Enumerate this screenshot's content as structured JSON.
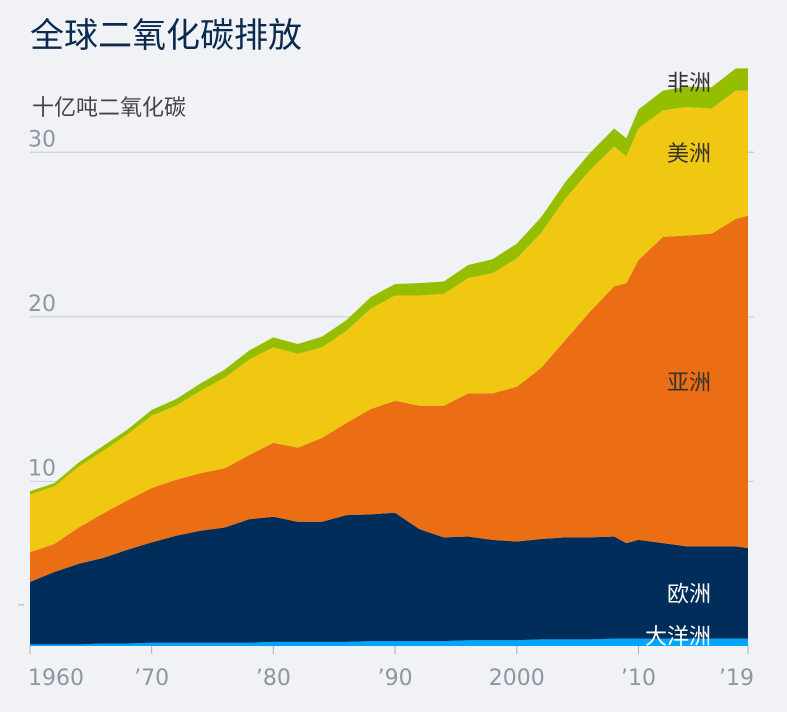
{
  "chart_data": {
    "type": "area",
    "stacked": true,
    "title": "全球二氧化碳排放",
    "ylabel": "十亿吨二氧化碳",
    "xlim": [
      1960,
      2019
    ],
    "ylim": [
      0,
      35
    ],
    "yticks": [
      10,
      20,
      30
    ],
    "xticks": [
      {
        "x": 1960,
        "label": "1960"
      },
      {
        "x": 1970,
        "label": "’70"
      },
      {
        "x": 1980,
        "label": "’80"
      },
      {
        "x": 1990,
        "label": "’90"
      },
      {
        "x": 2000,
        "label": "2000"
      },
      {
        "x": 2010,
        "label": "’10"
      },
      {
        "x": 2019,
        "label": "’19"
      }
    ],
    "x": [
      1960,
      1962,
      1964,
      1966,
      1968,
      1970,
      1972,
      1974,
      1976,
      1978,
      1980,
      1982,
      1984,
      1986,
      1988,
      1990,
      1992,
      1994,
      1996,
      1998,
      2000,
      2002,
      2004,
      2006,
      2008,
      2009,
      2010,
      2012,
      2014,
      2016,
      2018,
      2019
    ],
    "series": [
      {
        "name": "大洋洲",
        "color": "#00a5ff",
        "values": [
          0.1,
          0.1,
          0.1,
          0.15,
          0.15,
          0.2,
          0.2,
          0.2,
          0.2,
          0.2,
          0.25,
          0.25,
          0.25,
          0.25,
          0.3,
          0.3,
          0.3,
          0.3,
          0.35,
          0.35,
          0.35,
          0.4,
          0.4,
          0.4,
          0.45,
          0.45,
          0.45,
          0.45,
          0.45,
          0.45,
          0.45,
          0.45
        ]
      },
      {
        "name": "欧洲",
        "color": "#002d5a",
        "values": [
          3.8,
          4.4,
          4.9,
          5.2,
          5.7,
          6.1,
          6.5,
          6.8,
          7.0,
          7.5,
          7.6,
          7.3,
          7.3,
          7.7,
          7.7,
          7.8,
          6.8,
          6.3,
          6.3,
          6.1,
          6.0,
          6.1,
          6.2,
          6.2,
          6.2,
          5.8,
          6.0,
          5.8,
          5.6,
          5.6,
          5.6,
          5.5
        ]
      },
      {
        "name": "亚洲",
        "color": "#eb6d14",
        "values": [
          1.8,
          1.7,
          2.2,
          2.7,
          3.0,
          3.3,
          3.4,
          3.5,
          3.6,
          3.9,
          4.5,
          4.5,
          5.1,
          5.6,
          6.4,
          6.8,
          7.5,
          8.0,
          8.7,
          8.9,
          9.4,
          10.4,
          12.0,
          13.7,
          15.2,
          15.8,
          17.0,
          18.6,
          18.9,
          19.0,
          19.9,
          20.2
        ]
      },
      {
        "name": "美洲",
        "color": "#f0c812",
        "values": [
          3.5,
          3.5,
          3.7,
          3.8,
          4.0,
          4.4,
          4.5,
          5.0,
          5.5,
          5.8,
          5.8,
          5.7,
          5.5,
          5.6,
          6.1,
          6.4,
          6.7,
          6.8,
          7.0,
          7.3,
          7.8,
          8.2,
          8.6,
          8.6,
          8.5,
          7.7,
          8.0,
          7.7,
          7.8,
          7.6,
          7.8,
          7.6
        ]
      },
      {
        "name": "非洲",
        "color": "#96be00",
        "values": [
          0.2,
          0.2,
          0.25,
          0.3,
          0.3,
          0.35,
          0.4,
          0.45,
          0.5,
          0.55,
          0.6,
          0.6,
          0.65,
          0.65,
          0.7,
          0.7,
          0.75,
          0.75,
          0.8,
          0.85,
          0.9,
          0.95,
          1.0,
          1.05,
          1.1,
          1.1,
          1.15,
          1.2,
          1.25,
          1.3,
          1.35,
          1.35
        ]
      }
    ]
  }
}
